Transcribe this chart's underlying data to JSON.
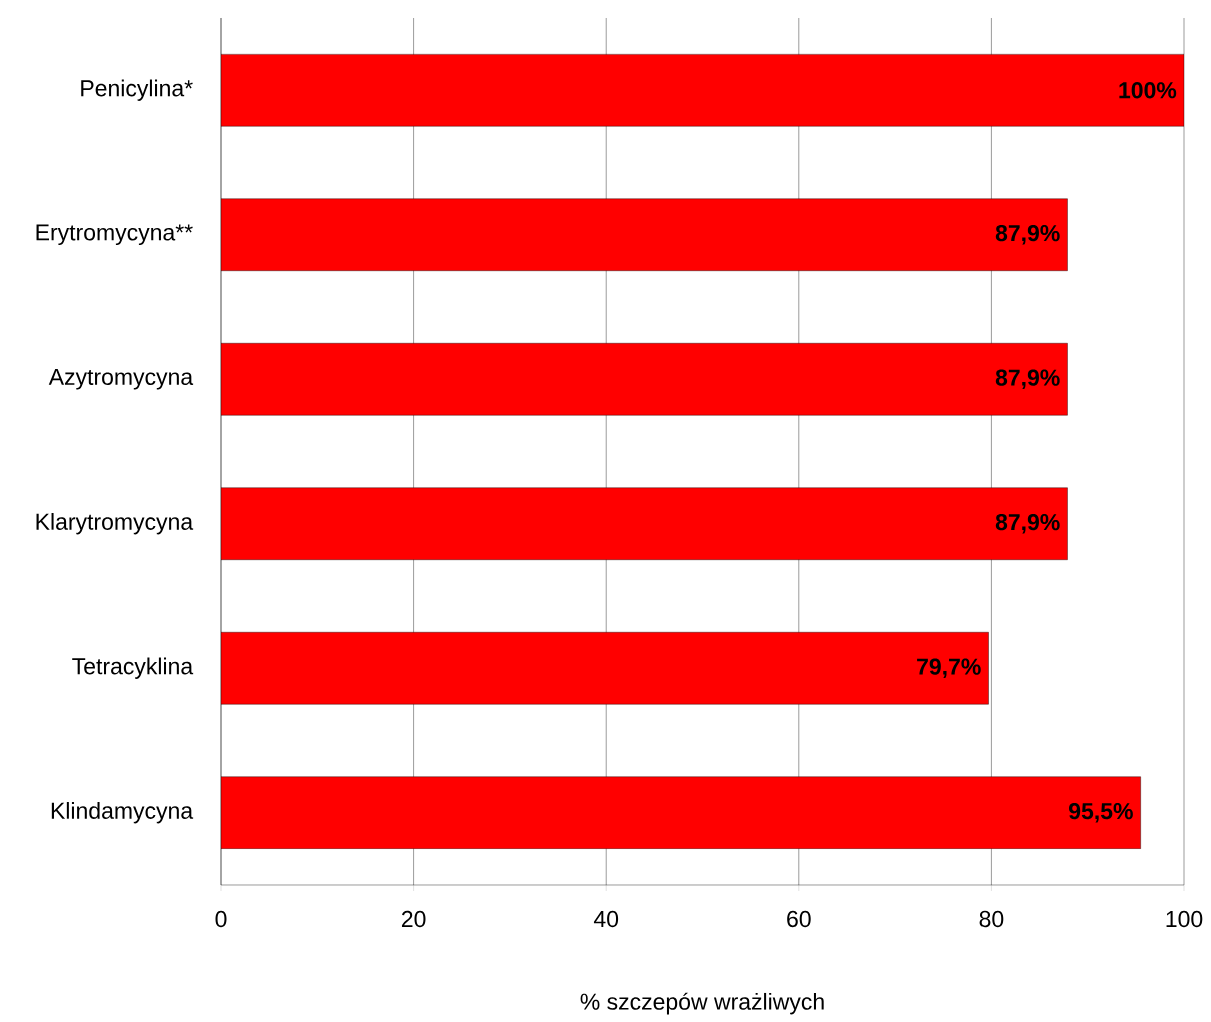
{
  "chart_data": {
    "type": "bar",
    "orientation": "horizontal",
    "xlabel": "% szczepów wrażliwych",
    "categories": [
      "Penicylina*",
      "Erytromycyna**",
      "Azytromycyna",
      "Klarytromycyna",
      "Tetracyklina",
      "Klindamycyna"
    ],
    "values": [
      100,
      87.9,
      87.9,
      87.9,
      79.7,
      95.5
    ],
    "value_labels": [
      "100%",
      "87,9%",
      "87,9%",
      "87,9%",
      "79,7%",
      "95,5%"
    ],
    "color": "#ff0000",
    "xlim": [
      0,
      100
    ],
    "xticks": [
      0,
      20,
      40,
      60,
      80,
      100
    ],
    "grid": "x"
  }
}
